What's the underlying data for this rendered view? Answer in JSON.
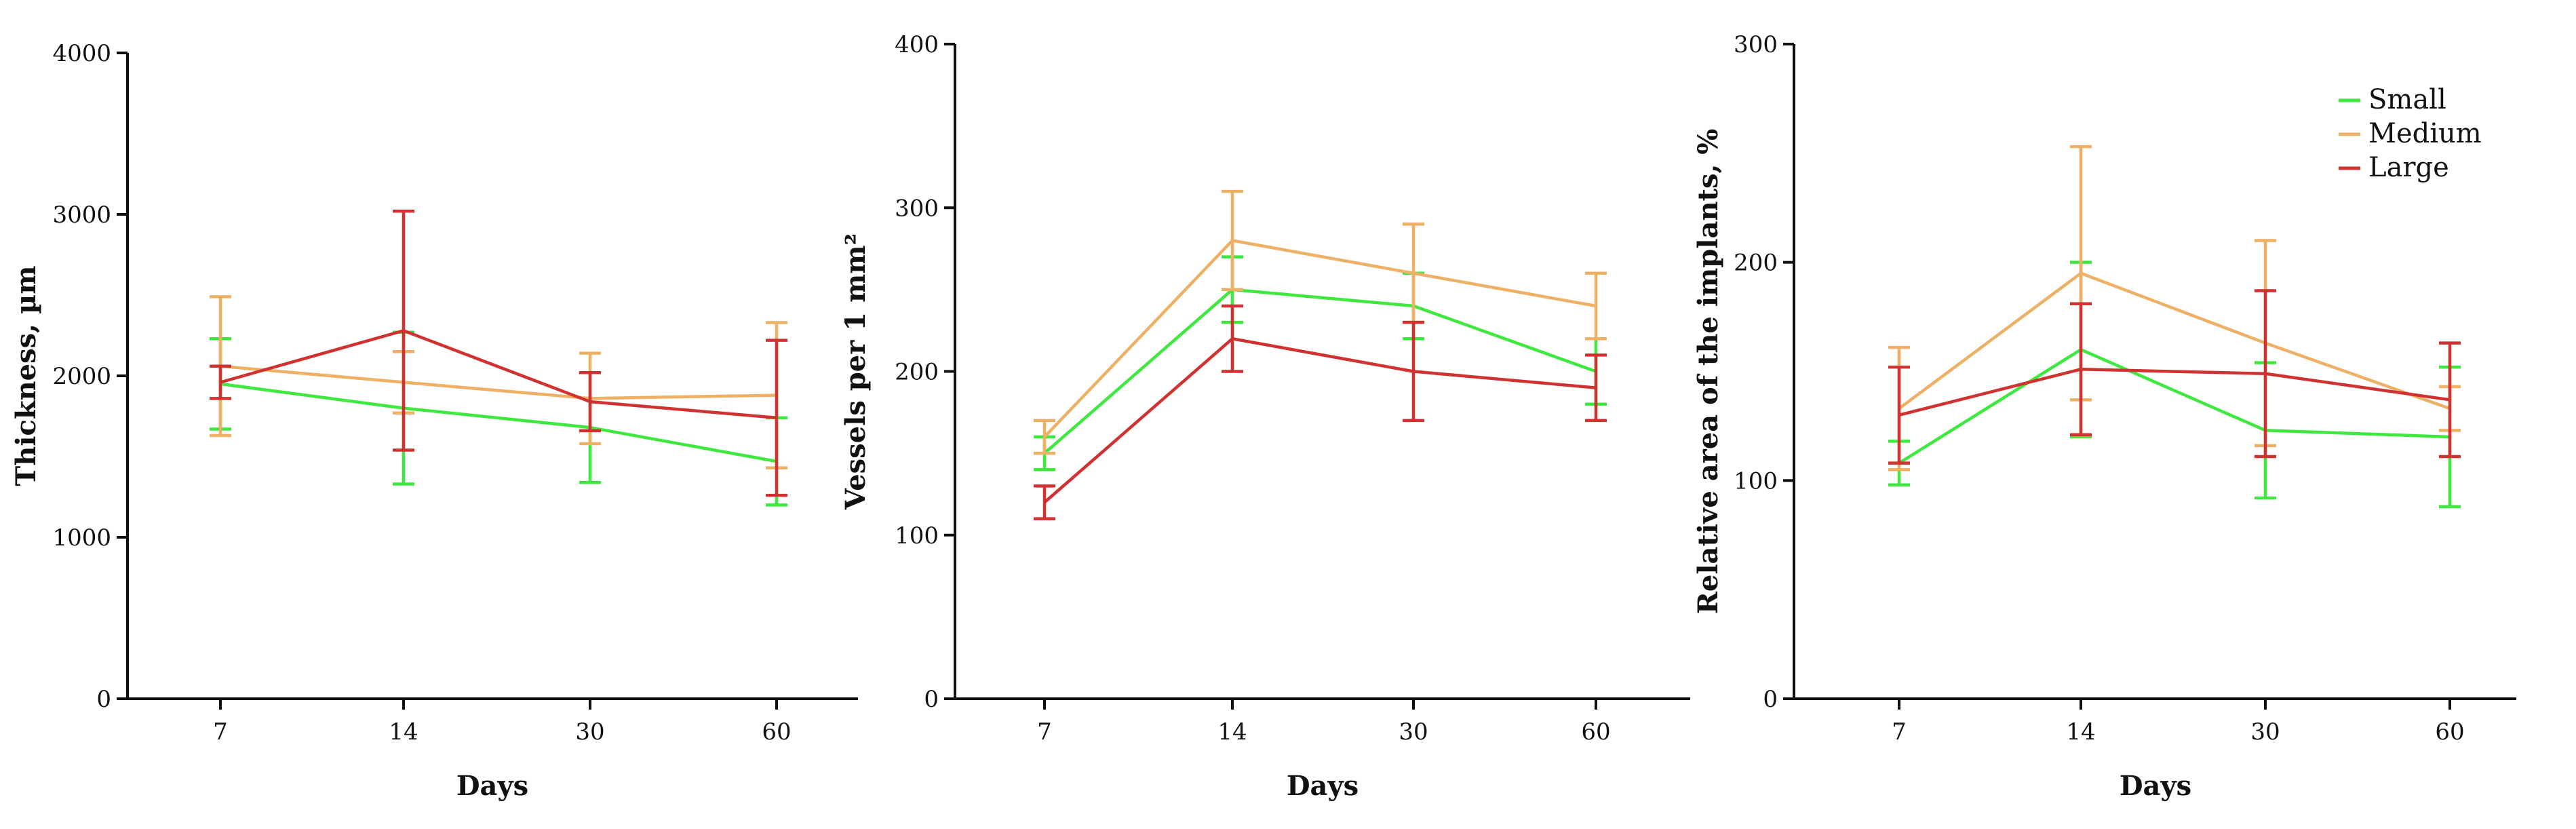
{
  "colors": {
    "Small": "#3ee83e",
    "Medium": "#eeb065",
    "Large": "#d03131"
  },
  "legend": [
    "Small",
    "Medium",
    "Large"
  ],
  "chart_data": [
    {
      "type": "line",
      "title": "",
      "xlabel": "Days",
      "ylabel": "Thickness, µm",
      "ylim": [
        0,
        4000
      ],
      "yticks": [
        "0",
        "1000",
        "2000",
        "3000",
        "4000"
      ],
      "categories": [
        "7",
        "14",
        "30",
        "60"
      ],
      "series": [
        {
          "name": "Small",
          "values": [
            1950,
            1800,
            1680,
            1470
          ],
          "errors": [
            280,
            470,
            340,
            270
          ]
        },
        {
          "name": "Medium",
          "values": [
            2060,
            1960,
            1860,
            1880
          ],
          "errors": [
            430,
            190,
            280,
            450
          ]
        },
        {
          "name": "Large",
          "values": [
            1960,
            2280,
            1840,
            1740
          ],
          "errors": [
            100,
            740,
            180,
            480
          ]
        }
      ]
    },
    {
      "type": "line",
      "title": "",
      "xlabel": "Days",
      "ylabel": "Vessels per 1 mm²",
      "ylim": [
        0,
        400
      ],
      "yticks": [
        "0",
        "100",
        "200",
        "300",
        "400"
      ],
      "categories": [
        "7",
        "14",
        "30",
        "60"
      ],
      "series": [
        {
          "name": "Small",
          "values": [
            150,
            250,
            240,
            200
          ],
          "errors": [
            10,
            20,
            20,
            20
          ]
        },
        {
          "name": "Medium",
          "values": [
            160,
            280,
            260,
            240
          ],
          "errors": [
            10,
            30,
            30,
            20
          ]
        },
        {
          "name": "Large",
          "values": [
            120,
            220,
            200,
            190
          ],
          "errors": [
            10,
            20,
            30,
            20
          ]
        }
      ]
    },
    {
      "type": "line",
      "title": "",
      "xlabel": "Days",
      "ylabel": "Relative area of the implants, %",
      "ylim": [
        0,
        300
      ],
      "yticks": [
        "0",
        "100",
        "200",
        "300"
      ],
      "categories": [
        "7",
        "14",
        "30",
        "60"
      ],
      "series": [
        {
          "name": "Small",
          "values": [
            108,
            160,
            123,
            120
          ],
          "errors": [
            10,
            40,
            31,
            32
          ]
        },
        {
          "name": "Medium",
          "values": [
            133,
            195,
            163,
            133
          ],
          "errors": [
            28,
            58,
            47,
            10
          ]
        },
        {
          "name": "Large",
          "values": [
            130,
            151,
            149,
            137
          ],
          "errors": [
            22,
            30,
            38,
            26
          ]
        }
      ]
    }
  ]
}
